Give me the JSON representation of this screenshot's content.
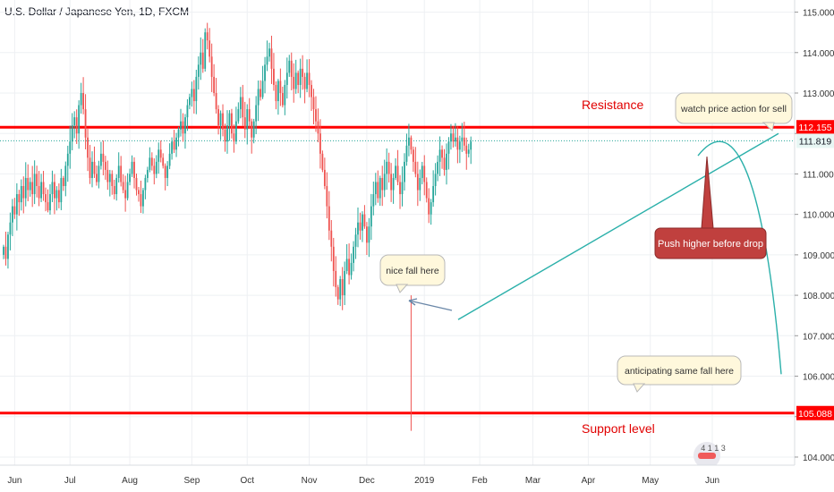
{
  "header": {
    "symbol_title": "U.S. Dollar / Japanese Yen, 1D, FXCM"
  },
  "colors": {
    "up": "#26a69a",
    "down": "#ef5350",
    "level": "#ff0000",
    "trend": "#2bb0aa",
    "grid": "#eef0f3"
  },
  "chart_data": {
    "type": "candlestick",
    "title": "U.S. Dollar / Japanese Yen, 1D, FXCM",
    "ylim": [
      103.8,
      115.3
    ],
    "y_ticks": [
      104.0,
      105.0,
      106.0,
      107.0,
      108.0,
      109.0,
      110.0,
      111.0,
      112.0,
      113.0,
      114.0,
      115.0
    ],
    "y_tick_labels": [
      "104.000",
      "105.000",
      "106.000",
      "107.000",
      "108.000",
      "109.000",
      "110.000",
      "111.000",
      "112.000",
      "113.000",
      "114.000",
      "115.000"
    ],
    "x_ticks": [
      {
        "label": "Jun",
        "i": 5
      },
      {
        "label": "Jul",
        "i": 30
      },
      {
        "label": "Aug",
        "i": 57
      },
      {
        "label": "Sep",
        "i": 85
      },
      {
        "label": "Oct",
        "i": 110
      },
      {
        "label": "Nov",
        "i": 138
      },
      {
        "label": "Dec",
        "i": 164
      },
      {
        "label": "2019",
        "i": 190
      },
      {
        "label": "Feb",
        "i": 215
      },
      {
        "label": "Mar",
        "i": 239
      },
      {
        "label": "Apr",
        "i": 264
      },
      {
        "label": "May",
        "i": 292
      },
      {
        "label": "Jun",
        "i": 320
      }
    ],
    "candles_anchor_closes": [
      109.2,
      108.9,
      109.5,
      109.8,
      110.2,
      110.0,
      110.5,
      110.3,
      110.7,
      110.4,
      110.9,
      110.6,
      110.8,
      110.5,
      111.0,
      110.7,
      110.4,
      110.8,
      110.5,
      110.3,
      110.1,
      110.5,
      110.8,
      110.4,
      110.6,
      110.3,
      110.9,
      110.7,
      111.2,
      111.5,
      111.8,
      112.2,
      112.4,
      112.0,
      112.7,
      113.0,
      112.6,
      111.9,
      111.4,
      110.9,
      111.3,
      111.0,
      110.8,
      111.2,
      111.5,
      111.3,
      111.1,
      110.8,
      111.0,
      110.7,
      110.5,
      110.9,
      111.2,
      110.8,
      110.6,
      110.4,
      110.8,
      111.0,
      111.3,
      110.9,
      110.6,
      110.5,
      110.2,
      110.6,
      110.9,
      111.1,
      111.4,
      111.2,
      111.0,
      111.3,
      111.6,
      111.4,
      111.2,
      110.9,
      111.2,
      111.5,
      111.8,
      111.6,
      111.9,
      112.1,
      112.3,
      112.0,
      112.4,
      112.7,
      112.9,
      113.1,
      112.8,
      113.4,
      113.7,
      114.0,
      113.6,
      114.5,
      114.3,
      113.9,
      113.4,
      113.0,
      112.6,
      112.2,
      112.5,
      112.1,
      111.8,
      112.2,
      112.5,
      112.0,
      111.8,
      112.3,
      112.6,
      112.9,
      112.4,
      112.1,
      112.6,
      112.3,
      111.9,
      112.3,
      112.7,
      113.1,
      112.9,
      113.3,
      113.7,
      113.9,
      114.1,
      113.6,
      113.2,
      112.8,
      113.3,
      113.0,
      112.7,
      113.2,
      113.5,
      113.8,
      113.4,
      113.1,
      113.5,
      113.2,
      113.6,
      113.4,
      113.1,
      113.5,
      113.2,
      112.9,
      112.6,
      112.3,
      112.0,
      111.5,
      111.1,
      110.7,
      110.2,
      109.6,
      109.2,
      108.6,
      108.2,
      107.9,
      108.4,
      108.0,
      108.6,
      108.9,
      108.5,
      108.8,
      109.2,
      109.5,
      109.8,
      109.6,
      110.0,
      109.7,
      109.3,
      109.7,
      110.2,
      110.5,
      110.8,
      110.4,
      110.9,
      110.6,
      111.0,
      111.3,
      111.0,
      110.6,
      110.9,
      111.2,
      110.8,
      110.5,
      110.8,
      111.3,
      111.7,
      111.9,
      111.6,
      111.3,
      111.0,
      110.6,
      110.9,
      111.2,
      110.8,
      110.4,
      110.0,
      110.3,
      110.7,
      111.0,
      111.3,
      111.6,
      111.4,
      111.1,
      111.5,
      111.8,
      112.0,
      111.8,
      111.9,
      111.6,
      111.8,
      111.9,
      111.7,
      111.5,
      111.6,
      111.8
    ],
    "support": {
      "value": 105.088,
      "label": "Support level",
      "price_label": "105.088"
    },
    "resistance": {
      "value": 112.155,
      "label": "Resistance",
      "price_label": "112.155"
    },
    "last_price": {
      "value": 111.819,
      "price_label": "111.819"
    },
    "annotations": {
      "nice_fall": "nice fall here",
      "watch": "watch price action for sell",
      "push": "Push higher before drop",
      "anticipate": "anticipating same fall here"
    },
    "logo_text": "4 1 1 3"
  }
}
